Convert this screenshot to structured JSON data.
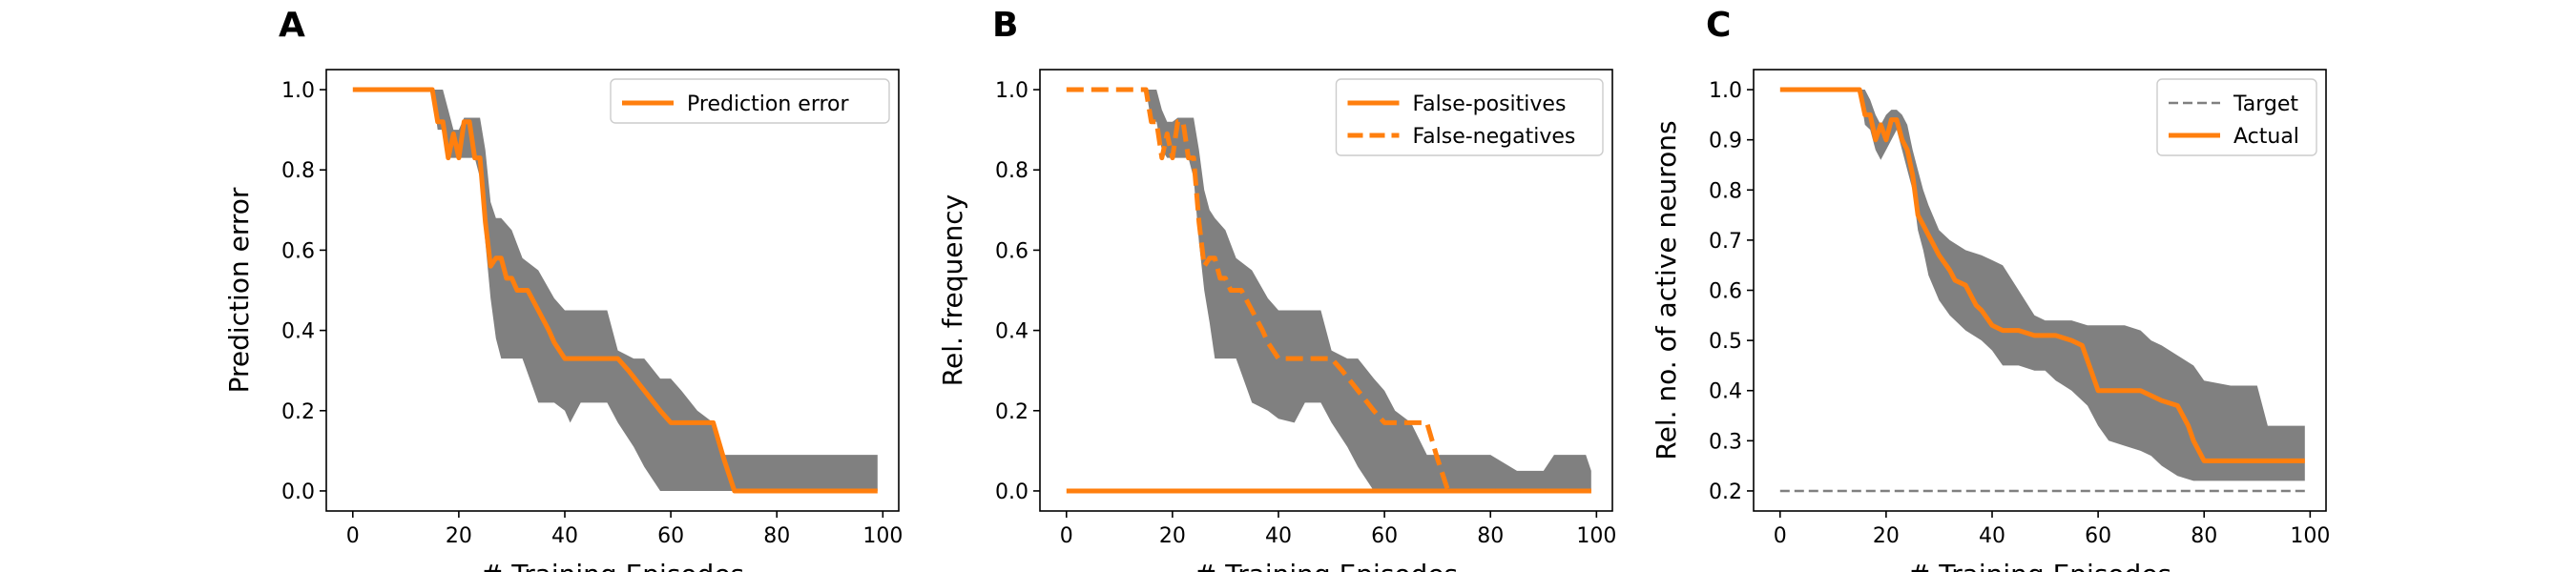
{
  "chart_data": [
    {
      "type": "line",
      "panel": "A",
      "xlabel": "# Training Episodes",
      "ylabel": "Prediction error",
      "xlim": [
        -5,
        103
      ],
      "ylim": [
        -0.05,
        1.05
      ],
      "xticks": [
        0,
        20,
        40,
        60,
        80,
        100
      ],
      "yticks": [
        0.0,
        0.2,
        0.4,
        0.6,
        0.8,
        1.0
      ],
      "tick_decimals": 1,
      "legend_position": "top-right",
      "band": {
        "color": "#808080",
        "x": [
          0,
          15,
          16,
          17,
          18,
          19,
          20,
          21,
          22,
          23,
          24,
          25,
          26,
          27,
          28,
          30,
          32,
          35,
          38,
          40,
          41,
          43,
          45,
          48,
          50,
          53,
          55,
          58,
          60,
          62,
          65,
          68,
          70,
          72,
          75,
          80,
          85,
          90,
          95,
          99
        ],
        "lower": [
          1.0,
          1.0,
          0.9,
          0.9,
          0.83,
          0.83,
          0.83,
          0.83,
          0.83,
          0.83,
          0.78,
          0.62,
          0.48,
          0.38,
          0.33,
          0.33,
          0.33,
          0.22,
          0.22,
          0.2,
          0.17,
          0.22,
          0.22,
          0.22,
          0.17,
          0.11,
          0.06,
          0.0,
          0.0,
          0.0,
          0.0,
          0.0,
          0.0,
          0.0,
          0.0,
          0.0,
          0.0,
          0.0,
          0.0,
          0.0
        ],
        "upper": [
          1.0,
          1.0,
          1.0,
          1.0,
          0.95,
          0.9,
          0.9,
          0.93,
          0.93,
          0.93,
          0.93,
          0.85,
          0.72,
          0.68,
          0.68,
          0.65,
          0.58,
          0.55,
          0.48,
          0.45,
          0.45,
          0.45,
          0.45,
          0.45,
          0.35,
          0.33,
          0.33,
          0.28,
          0.28,
          0.25,
          0.2,
          0.17,
          0.09,
          0.09,
          0.09,
          0.09,
          0.09,
          0.09,
          0.09,
          0.09
        ]
      },
      "series": [
        {
          "name": "Prediction error",
          "color": "#ff7f0e",
          "style": "solid",
          "x": [
            0,
            15,
            16,
            17,
            18,
            19,
            20,
            21,
            22,
            23,
            24,
            25,
            26,
            27,
            28,
            29,
            30,
            31,
            33,
            35,
            37,
            38,
            40,
            41,
            45,
            50,
            52,
            55,
            58,
            60,
            62,
            65,
            68,
            70,
            72,
            75,
            99
          ],
          "y": [
            1.0,
            1.0,
            0.92,
            0.92,
            0.83,
            0.89,
            0.83,
            0.92,
            0.92,
            0.83,
            0.83,
            0.67,
            0.56,
            0.58,
            0.58,
            0.53,
            0.53,
            0.5,
            0.5,
            0.45,
            0.4,
            0.37,
            0.33,
            0.33,
            0.33,
            0.33,
            0.3,
            0.25,
            0.2,
            0.17,
            0.17,
            0.17,
            0.17,
            0.08,
            0.0,
            0.0,
            0.0
          ]
        }
      ]
    },
    {
      "type": "line",
      "panel": "B",
      "xlabel": "# Training Episodes",
      "ylabel": "Rel. frequency",
      "xlim": [
        -5,
        103
      ],
      "ylim": [
        -0.05,
        1.05
      ],
      "xticks": [
        0,
        20,
        40,
        60,
        80,
        100
      ],
      "yticks": [
        0.0,
        0.2,
        0.4,
        0.6,
        0.8,
        1.0
      ],
      "tick_decimals": 1,
      "legend_position": "top-right",
      "band": {
        "color": "#808080",
        "x": [
          15,
          16,
          17,
          18,
          19,
          20,
          21,
          22,
          23,
          24,
          25,
          26,
          27,
          28,
          30,
          32,
          35,
          38,
          40,
          43,
          45,
          48,
          50,
          53,
          55,
          58,
          60,
          62,
          65,
          68,
          70,
          72,
          75,
          80,
          85,
          90,
          92,
          94,
          96,
          98,
          99
        ],
        "lower": [
          1.0,
          0.92,
          0.92,
          0.85,
          0.83,
          0.83,
          0.83,
          0.83,
          0.83,
          0.78,
          0.62,
          0.5,
          0.42,
          0.33,
          0.33,
          0.33,
          0.22,
          0.2,
          0.18,
          0.17,
          0.22,
          0.22,
          0.17,
          0.11,
          0.06,
          0.0,
          0.0,
          0.0,
          0.0,
          0.0,
          0.0,
          0.0,
          0.0,
          0.0,
          0.0,
          0.0,
          0.0,
          0.0,
          0.0,
          0.0,
          0.0
        ],
        "upper": [
          1.0,
          1.0,
          1.0,
          0.95,
          0.92,
          0.92,
          0.93,
          0.93,
          0.93,
          0.93,
          0.85,
          0.75,
          0.7,
          0.68,
          0.65,
          0.58,
          0.55,
          0.48,
          0.45,
          0.45,
          0.45,
          0.45,
          0.35,
          0.33,
          0.33,
          0.28,
          0.25,
          0.2,
          0.17,
          0.09,
          0.09,
          0.09,
          0.09,
          0.09,
          0.05,
          0.05,
          0.09,
          0.09,
          0.09,
          0.09,
          0.05
        ]
      },
      "series": [
        {
          "name": "False-positives",
          "color": "#ff7f0e",
          "style": "solid",
          "x": [
            0,
            99
          ],
          "y": [
            0.0,
            0.0
          ]
        },
        {
          "name": "False-negatives",
          "color": "#ff7f0e",
          "style": "dashed",
          "x": [
            0,
            15,
            16,
            17,
            18,
            19,
            20,
            21,
            22,
            23,
            24,
            25,
            26,
            27,
            28,
            29,
            30,
            31,
            33,
            35,
            37,
            38,
            40,
            41,
            45,
            50,
            52,
            55,
            58,
            60,
            62,
            65,
            68,
            70,
            72,
            75,
            99
          ],
          "y": [
            1.0,
            1.0,
            0.92,
            0.92,
            0.83,
            0.89,
            0.83,
            0.92,
            0.92,
            0.83,
            0.83,
            0.67,
            0.56,
            0.58,
            0.58,
            0.53,
            0.53,
            0.5,
            0.5,
            0.45,
            0.4,
            0.37,
            0.33,
            0.33,
            0.33,
            0.33,
            0.3,
            0.25,
            0.2,
            0.17,
            0.17,
            0.17,
            0.17,
            0.08,
            0.0,
            0.0,
            0.0
          ]
        }
      ]
    },
    {
      "type": "line",
      "panel": "C",
      "xlabel": "# Training Episodes",
      "ylabel": "Rel. no. of active neurons",
      "xlim": [
        -5,
        103
      ],
      "ylim": [
        0.16,
        1.04
      ],
      "xticks": [
        0,
        20,
        40,
        60,
        80,
        100
      ],
      "yticks": [
        0.2,
        0.3,
        0.4,
        0.5,
        0.6,
        0.7,
        0.8,
        0.9,
        1.0
      ],
      "tick_decimals": 1,
      "legend_position": "top-right",
      "band": {
        "color": "#808080",
        "x": [
          0,
          15,
          16,
          17,
          18,
          19,
          20,
          21,
          22,
          23,
          24,
          25,
          26,
          27,
          28,
          30,
          32,
          35,
          38,
          40,
          42,
          45,
          48,
          50,
          52,
          55,
          58,
          60,
          62,
          65,
          68,
          70,
          72,
          75,
          78,
          80,
          85,
          90,
          92,
          95,
          99
        ],
        "lower": [
          1.0,
          1.0,
          0.93,
          0.92,
          0.88,
          0.86,
          0.88,
          0.9,
          0.92,
          0.88,
          0.84,
          0.8,
          0.72,
          0.68,
          0.63,
          0.58,
          0.55,
          0.52,
          0.5,
          0.48,
          0.45,
          0.45,
          0.44,
          0.44,
          0.42,
          0.4,
          0.37,
          0.33,
          0.3,
          0.29,
          0.28,
          0.27,
          0.25,
          0.23,
          0.22,
          0.22,
          0.22,
          0.22,
          0.22,
          0.22,
          0.22
        ],
        "upper": [
          1.0,
          1.0,
          1.0,
          0.98,
          0.95,
          0.93,
          0.95,
          0.96,
          0.96,
          0.95,
          0.93,
          0.88,
          0.84,
          0.8,
          0.77,
          0.72,
          0.7,
          0.68,
          0.67,
          0.66,
          0.65,
          0.6,
          0.55,
          0.54,
          0.54,
          0.54,
          0.53,
          0.53,
          0.53,
          0.53,
          0.52,
          0.5,
          0.49,
          0.47,
          0.45,
          0.42,
          0.41,
          0.41,
          0.33,
          0.33,
          0.33
        ]
      },
      "series": [
        {
          "name": "Target",
          "color": "#808080",
          "style": "dashed-thin",
          "x": [
            0,
            99
          ],
          "y": [
            0.2,
            0.2
          ]
        },
        {
          "name": "Actual",
          "color": "#ff7f0e",
          "style": "solid",
          "x": [
            0,
            15,
            16,
            17,
            18,
            19,
            20,
            21,
            22,
            23,
            24,
            25,
            26,
            27,
            28,
            30,
            32,
            33,
            35,
            37,
            38,
            40,
            42,
            45,
            48,
            50,
            52,
            55,
            57,
            58,
            60,
            65,
            68,
            70,
            72,
            75,
            77,
            78,
            80,
            85,
            90,
            95,
            99
          ],
          "y": [
            1.0,
            1.0,
            0.95,
            0.95,
            0.9,
            0.93,
            0.9,
            0.94,
            0.94,
            0.9,
            0.88,
            0.83,
            0.75,
            0.73,
            0.71,
            0.67,
            0.64,
            0.62,
            0.61,
            0.57,
            0.56,
            0.53,
            0.52,
            0.52,
            0.51,
            0.51,
            0.51,
            0.5,
            0.49,
            0.46,
            0.4,
            0.4,
            0.4,
            0.39,
            0.38,
            0.37,
            0.33,
            0.3,
            0.26,
            0.26,
            0.26,
            0.26,
            0.26
          ]
        }
      ]
    }
  ]
}
